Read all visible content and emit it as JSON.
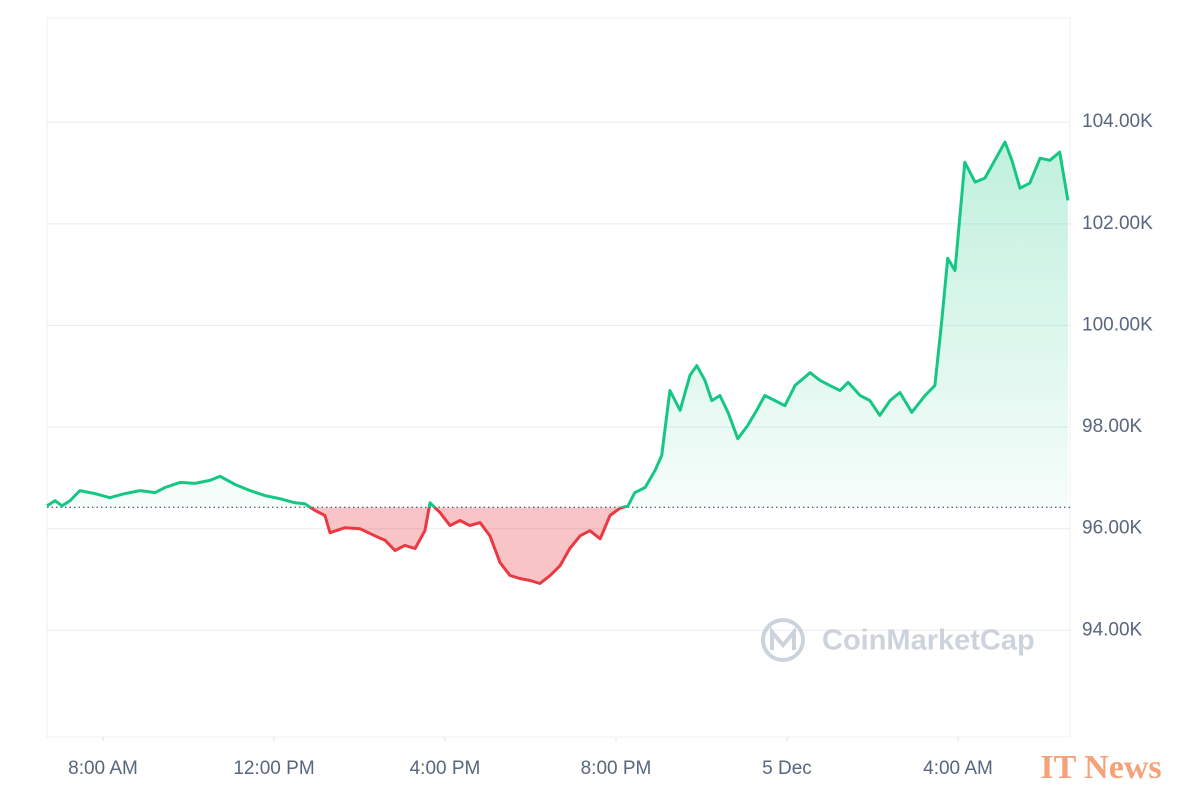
{
  "chart_data": {
    "type": "line",
    "x": [
      6.69,
      6.88,
      7.04,
      7.23,
      7.46,
      7.81,
      8.16,
      8.51,
      8.87,
      9.22,
      9.45,
      9.8,
      10.15,
      10.5,
      10.74,
      11.09,
      11.44,
      11.79,
      12.14,
      12.49,
      12.72,
      12.96,
      13.19,
      13.31,
      13.66,
      14.01,
      14.36,
      14.6,
      14.83,
      15.06,
      15.3,
      15.53,
      15.65,
      15.88,
      16.12,
      16.35,
      16.58,
      16.82,
      17.05,
      17.29,
      17.52,
      17.75,
      17.99,
      18.22,
      18.46,
      18.69,
      18.92,
      19.16,
      19.39,
      19.63,
      19.86,
      20.09,
      20.28,
      20.44,
      20.68,
      20.91,
      21.07,
      21.26,
      21.5,
      21.73,
      21.89,
      22.08,
      22.24,
      22.43,
      22.62,
      22.85,
      23.08,
      23.32,
      23.48,
      23.72,
      23.95,
      24.19,
      24.54,
      24.77,
      25.0,
      25.24,
      25.43,
      25.71,
      25.94,
      26.17,
      26.41,
      26.64,
      26.92,
      27.23,
      27.46,
      27.62,
      27.76,
      27.93,
      28.16,
      28.4,
      28.63,
      28.86,
      29.1,
      29.26,
      29.45,
      29.68,
      29.92,
      30.15,
      30.38,
      30.57
    ],
    "values": [
      96450,
      96550,
      96450,
      96550,
      96750,
      96690,
      96610,
      96690,
      96750,
      96710,
      96810,
      96910,
      96890,
      96950,
      97030,
      96870,
      96750,
      96650,
      96590,
      96510,
      96490,
      96360,
      96260,
      95920,
      96020,
      96000,
      95860,
      95770,
      95570,
      95670,
      95610,
      95960,
      96510,
      96320,
      96060,
      96160,
      96060,
      96120,
      95860,
      95330,
      95080,
      95020,
      94980,
      94920,
      95080,
      95270,
      95610,
      95860,
      95960,
      95800,
      96260,
      96400,
      96450,
      96710,
      96810,
      97140,
      97440,
      98720,
      98330,
      99020,
      99210,
      98920,
      98520,
      98620,
      98290,
      97770,
      98030,
      98370,
      98620,
      98520,
      98420,
      98820,
      99070,
      98920,
      98820,
      98720,
      98880,
      98620,
      98520,
      98230,
      98520,
      98680,
      98290,
      98620,
      98820,
      100100,
      101320,
      101080,
      103210,
      102820,
      102900,
      103250,
      103610,
      103250,
      102700,
      102800,
      103290,
      103250,
      103410,
      102460
    ],
    "baseline": 96420,
    "up_color": "#16c784",
    "down_color": "#ea3943",
    "xlim": [
      6.69,
      30.62
    ],
    "ylim": [
      91900,
      106050
    ],
    "xticks": [
      {
        "value": 8,
        "label": "8:00 AM"
      },
      {
        "value": 12,
        "label": "12:00 PM"
      },
      {
        "value": 16,
        "label": "4:00 PM"
      },
      {
        "value": 20,
        "label": "8:00 PM"
      },
      {
        "value": 24,
        "label": "5 Dec"
      },
      {
        "value": 28,
        "label": "4:00 AM"
      }
    ],
    "yticks": [
      {
        "value": 94000,
        "label": "94.00K"
      },
      {
        "value": 96000,
        "label": "96.00K"
      },
      {
        "value": 98000,
        "label": "98.00K"
      },
      {
        "value": 100000,
        "label": "100.00K"
      },
      {
        "value": 102000,
        "label": "102.00K"
      },
      {
        "value": 104000,
        "label": "104.00K"
      }
    ],
    "grid": true,
    "watermark": "CoinMarketCap",
    "source_mark": "IT News"
  }
}
